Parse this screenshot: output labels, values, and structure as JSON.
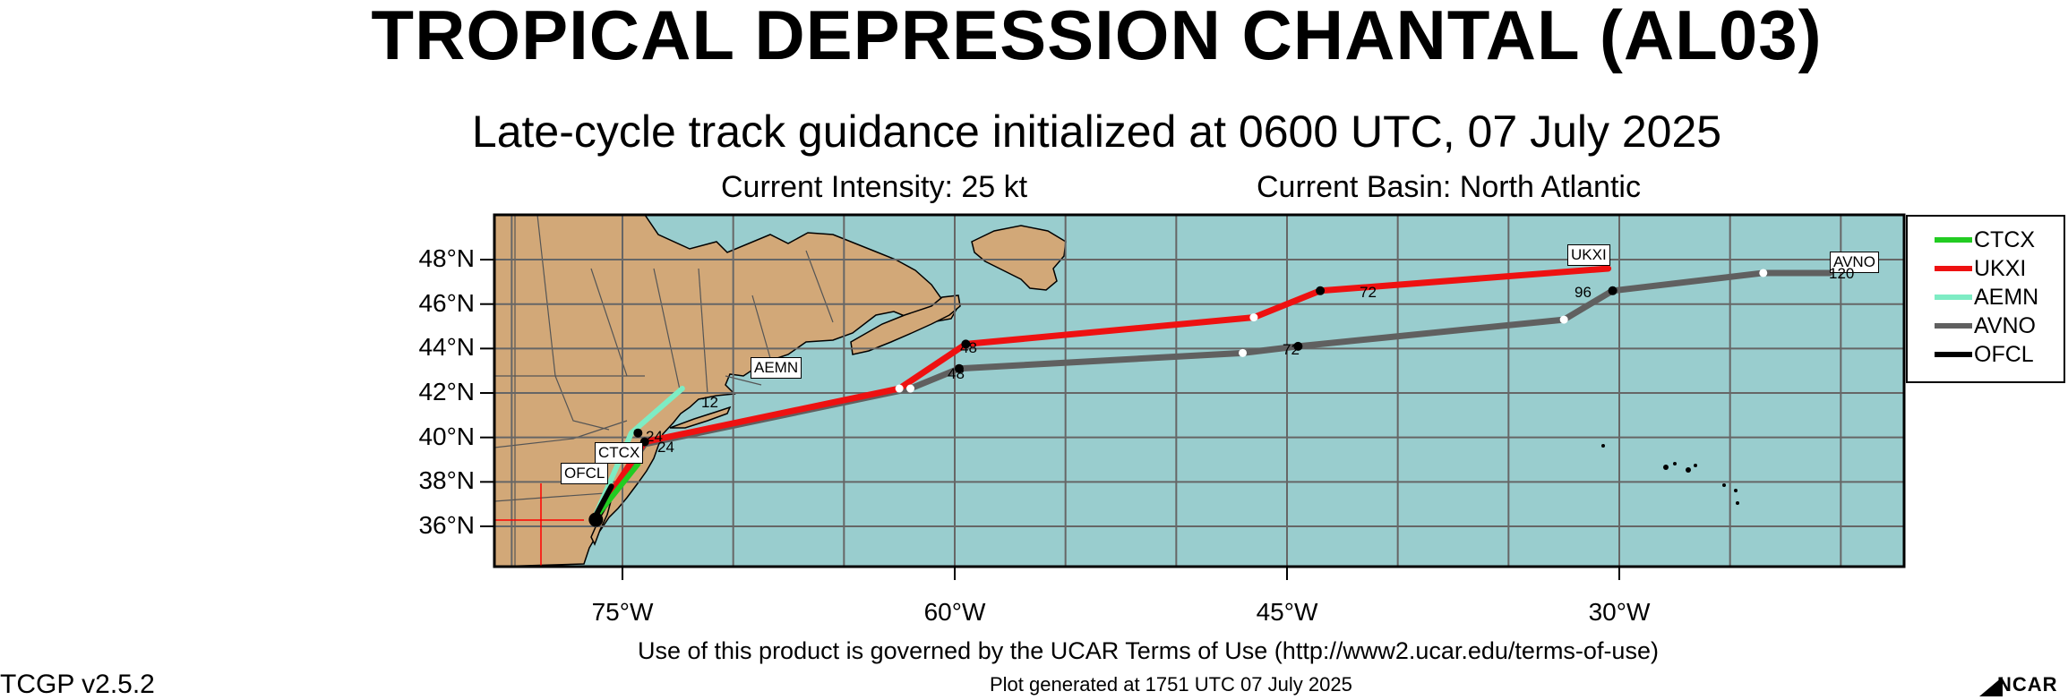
{
  "header": {
    "title": "TROPICAL DEPRESSION CHANTAL (AL03)",
    "subtitle": "Late-cycle track guidance initialized at 0600 UTC, 07 July 2025",
    "intensity": "Current Intensity: 25 kt",
    "basin": "Current Basin: North Atlantic"
  },
  "axes": {
    "lat_labels": [
      "48°N",
      "46°N",
      "44°N",
      "42°N",
      "40°N",
      "38°N",
      "36°N"
    ],
    "lon_labels": [
      "75°W",
      "60°W",
      "45°W",
      "30°W"
    ]
  },
  "legend": [
    {
      "name": "CTCX",
      "color": "#22cc22"
    },
    {
      "name": "UKXI",
      "color": "#ee1111"
    },
    {
      "name": "AEMN",
      "color": "#7eecc4"
    },
    {
      "name": "AVNO",
      "color": "#606060"
    },
    {
      "name": "OFCL",
      "color": "#000000"
    }
  ],
  "track_labels": {
    "ukxi": "UKXI",
    "avno": "AVNO",
    "aemn": "AEMN",
    "ctcx": "CTCX",
    "ofcl": "OFCL"
  },
  "hour_labels": {
    "h24a": "24",
    "h24b": "24",
    "h48_ukxi": "48",
    "h48_avno": "48",
    "h72_avno": "72",
    "h72_ukxi": "72",
    "h96_avno": "96",
    "h120_avno": "120",
    "h12": "12"
  },
  "colors": {
    "ocean": "#99cdce",
    "land": "#d2a878",
    "grid": "#666666"
  },
  "chart_data": {
    "type": "map-track",
    "tracks": [
      {
        "name": "UKXI",
        "points": [
          [
            -76.3,
            36.3
          ],
          [
            -74.0,
            39.8
          ],
          [
            -62.5,
            42.2
          ],
          [
            -59.5,
            44.2
          ],
          [
            -46.5,
            45.4
          ],
          [
            -43.5,
            46.6
          ],
          [
            -30.5,
            47.6
          ]
        ]
      },
      {
        "name": "AVNO",
        "points": [
          [
            -76.3,
            36.3
          ],
          [
            -74.0,
            39.7
          ],
          [
            -62.0,
            42.2
          ],
          [
            -59.8,
            43.1
          ],
          [
            -47.0,
            43.8
          ],
          [
            -44.5,
            44.1
          ],
          [
            -32.5,
            45.3
          ],
          [
            -30.3,
            46.6
          ],
          [
            -23.5,
            47.4
          ],
          [
            -20.5,
            47.4
          ]
        ]
      },
      {
        "name": "AEMN",
        "points": [
          [
            -76.3,
            36.3
          ],
          [
            -74.6,
            40.2
          ],
          [
            -72.3,
            42.2
          ]
        ]
      },
      {
        "name": "CTCX",
        "points": [
          [
            -76.3,
            36.3
          ],
          [
            -74.3,
            38.8
          ]
        ]
      },
      {
        "name": "OFCL",
        "points": [
          [
            -76.3,
            36.3
          ],
          [
            -75.5,
            37.8
          ]
        ]
      }
    ],
    "lon_range": [
      -80,
      -16
    ],
    "lat_range": [
      34,
      50
    ]
  },
  "footer": {
    "terms": "Use of this product is governed by the UCAR Terms of Use (http://www2.ucar.edu/terms-of-use)",
    "generated": "Plot generated at 1751 UTC   07 July 2025",
    "version": "TCGP v2.5.2",
    "logo": "NCAR"
  }
}
